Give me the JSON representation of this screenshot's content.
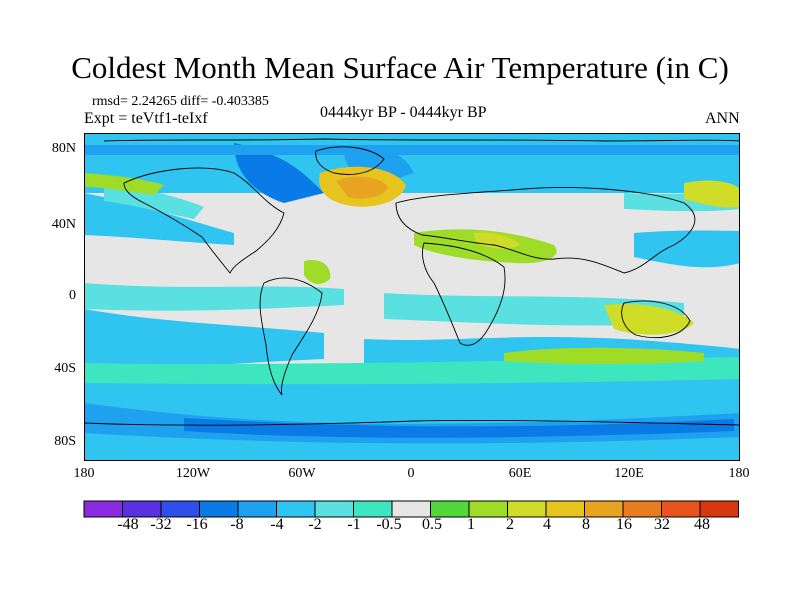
{
  "title": "Coldest Month Mean Surface Air Temperature (in C)",
  "stats": "rmsd= 2.24265 diff= -0.403385",
  "experiment": "Expt = teVtf1-teIxf",
  "period": "0444kyr BP - 0444kyr BP",
  "season": "ANN",
  "latitude_ticks": [
    "80N",
    "40N",
    "0",
    "40S",
    "80S"
  ],
  "longitude_ticks": [
    "180",
    "120W",
    "60W",
    "0",
    "60E",
    "120E",
    "180"
  ],
  "colorbar": {
    "colors": [
      "#8a2be2",
      "#5a30e0",
      "#2f50e8",
      "#0a7ae6",
      "#1ea2f0",
      "#30c4f0",
      "#5ae0e0",
      "#3ee6c0",
      "#e6e6e6",
      "#52d83a",
      "#9edc28",
      "#cfdc28",
      "#e8c41e",
      "#e8a420",
      "#e87c1e",
      "#e8541c",
      "#d8380e"
    ],
    "labels": [
      "-48",
      "-32",
      "-16",
      "-8",
      "-4",
      "-2",
      "-1",
      "-0.5",
      "0.5",
      "1",
      "2",
      "4",
      "8",
      "16",
      "32",
      "48"
    ]
  }
}
